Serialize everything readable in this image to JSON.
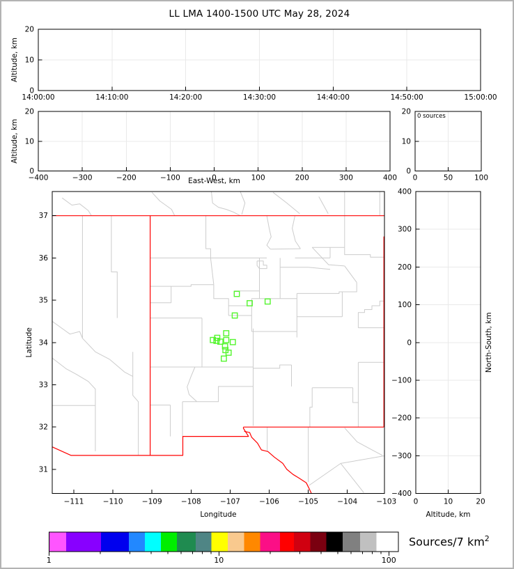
{
  "title": "LL LMA 1400-1500 UTC May 28, 2024",
  "colorbar": {
    "label": "Sources/7 km",
    "label_sup": "2",
    "scale": "log",
    "range": [
      1,
      100
    ],
    "tick_labels": [
      "1",
      "10",
      "100"
    ],
    "segment_colors": [
      "#ff55ff",
      "#8800ff",
      "#0000ee",
      "#2288ff",
      "#00ffff",
      "#00ee00",
      "#1f8b50",
      "#4f8585",
      "#ffff00",
      "#f9c98e",
      "#ff8800",
      "#fb0f86",
      "#ff0000",
      "#d00010",
      "#7a0010",
      "#000000",
      "#808080",
      "#c0c0c0",
      "#ffffff"
    ],
    "segment_widths": [
      24.7,
      50,
      40,
      23,
      23,
      23,
      27,
      22.7,
      23.3,
      23.3,
      23.4,
      28.3,
      20,
      23.3,
      23.4,
      23.3,
      25,
      23.3,
      31.7
    ]
  },
  "chart_data": [
    {
      "id": "time_height",
      "type": "scatter",
      "xlabel": "",
      "ylabel": "Altitude, km",
      "x_ticks": [
        "14:00:00",
        "14:10:00",
        "14:20:00",
        "14:30:00",
        "14:40:00",
        "14:50:00",
        "15:00:00"
      ],
      "y_range": [
        0,
        20
      ],
      "y_ticks": [
        0,
        10,
        20
      ],
      "grid": true,
      "points": []
    },
    {
      "id": "ew_height",
      "type": "scatter",
      "xlabel": "East-West, km",
      "ylabel": "Altitude, km",
      "x_range": [
        -400,
        400
      ],
      "x_ticks": [
        -400,
        -300,
        -200,
        -100,
        0,
        100,
        200,
        300,
        400
      ],
      "y_range": [
        0,
        20
      ],
      "y_ticks": [
        0,
        10,
        20
      ],
      "grid": true,
      "points": []
    },
    {
      "id": "altitude_histogram",
      "type": "bar",
      "annotation": "0 sources",
      "x_range": [
        0,
        100
      ],
      "x_ticks": [
        0,
        50,
        100
      ],
      "y_range": [
        0,
        20
      ],
      "y_ticks": [
        0,
        10,
        20
      ],
      "grid": true,
      "values": []
    },
    {
      "id": "plan_view",
      "type": "scatter",
      "xlabel": "Longitude",
      "ylabel": "Latitude",
      "x_range": [
        -111.553,
        -103.05
      ],
      "x_ticks": [
        -111,
        -110,
        -109,
        -108,
        -107,
        -106,
        -105,
        -104,
        -103
      ],
      "y_range": [
        30.43,
        37.572
      ],
      "y_ticks": [
        31,
        32,
        33,
        34,
        35,
        36,
        37
      ],
      "grid": false,
      "points": [
        [
          -106.83,
          35.15
        ],
        [
          -106.5,
          34.93
        ],
        [
          -106.04,
          34.97
        ],
        [
          -106.88,
          34.64
        ],
        [
          -107.1,
          34.22
        ],
        [
          -107.33,
          34.11
        ],
        [
          -107.44,
          34.06
        ],
        [
          -107.35,
          34.04
        ],
        [
          -107.25,
          34.02
        ],
        [
          -107.1,
          34.06
        ],
        [
          -106.93,
          34.01
        ],
        [
          -107.13,
          33.91
        ],
        [
          -107.12,
          33.82
        ],
        [
          -107.04,
          33.76
        ],
        [
          -107.16,
          33.62
        ]
      ]
    },
    {
      "id": "ns_height",
      "type": "scatter",
      "xlabel": "Altitude, km",
      "ylabel": "North-South, km",
      "x_range": [
        0,
        20
      ],
      "x_ticks": [
        0,
        10,
        20
      ],
      "y_range": [
        -400,
        400
      ],
      "y_ticks": [
        400,
        300,
        200,
        100,
        0,
        -100,
        -200,
        -300,
        -400
      ],
      "grid": true,
      "points": []
    }
  ],
  "map_layers": {
    "state_border_color": "#ff0000",
    "county_border_color": "#cccccc",
    "marker_color": "#54f52e",
    "state_lines": [
      [
        [
          -111.553,
          37.0
        ],
        [
          -103.002,
          37.0
        ]
      ],
      [
        [
          -109.047,
          37.0
        ],
        [
          -109.047,
          31.33
        ]
      ],
      [
        [
          -111.553,
          31.53
        ],
        [
          -111.07,
          31.33
        ],
        [
          -108.21,
          31.33
        ],
        [
          -108.21,
          31.78
        ],
        [
          -106.53,
          31.78
        ],
        [
          -106.66,
          31.97
        ],
        [
          -106.66,
          32.0
        ]
      ],
      [
        [
          -106.66,
          32.0
        ],
        [
          -103.065,
          32.0
        ]
      ],
      [
        [
          -103.065,
          32.0
        ],
        [
          -103.065,
          36.5
        ],
        [
          -103.002,
          36.5
        ],
        [
          -103.002,
          37.0
        ]
      ],
      [
        [
          -106.64,
          31.9
        ],
        [
          -106.5,
          31.87
        ],
        [
          -106.45,
          31.76
        ],
        [
          -106.3,
          31.62
        ],
        [
          -106.2,
          31.46
        ],
        [
          -106.03,
          31.42
        ],
        [
          -105.87,
          31.29
        ],
        [
          -105.65,
          31.14
        ],
        [
          -105.55,
          31.0
        ],
        [
          -105.39,
          30.88
        ],
        [
          -105.25,
          30.8
        ],
        [
          -105.05,
          30.68
        ],
        [
          -104.98,
          30.55
        ],
        [
          -104.92,
          30.43
        ]
      ]
    ],
    "county_lines": [
      [
        [
          -110.78,
          37
        ],
        [
          -110.78,
          34.1
        ]
      ],
      [
        [
          -110.04,
          37
        ],
        [
          -110.04,
          35.67
        ],
        [
          -109.89,
          35.67
        ],
        [
          -109.89,
          34.58
        ]
      ],
      [
        [
          -111.55,
          34.5
        ],
        [
          -111.25,
          34.3
        ],
        [
          -111.1,
          34.2
        ],
        [
          -110.85,
          34.26
        ],
        [
          -110.78,
          34.1
        ]
      ],
      [
        [
          -110.78,
          34.1
        ],
        [
          -110.45,
          33.78
        ],
        [
          -110.08,
          33.6
        ]
      ],
      [
        [
          -111.55,
          33.63
        ],
        [
          -111.2,
          33.38
        ],
        [
          -110.94,
          33.25
        ],
        [
          -110.63,
          33.08
        ],
        [
          -110.45,
          32.9
        ],
        [
          -110.45,
          32.51
        ]
      ],
      [
        [
          -111.55,
          32.51
        ],
        [
          -110.45,
          32.51
        ]
      ],
      [
        [
          -110.45,
          32.51
        ],
        [
          -110.45,
          31.43
        ]
      ],
      [
        [
          -109.49,
          33.78
        ],
        [
          -109.49,
          32.75
        ],
        [
          -109.35,
          32.6
        ],
        [
          -109.35,
          31.33
        ]
      ],
      [
        [
          -110.08,
          33.6
        ],
        [
          -109.89,
          33.45
        ],
        [
          -109.7,
          33.3
        ],
        [
          -109.49,
          33.2
        ]
      ],
      [
        [
          -111.3,
          37.42
        ],
        [
          -111.05,
          37.25
        ],
        [
          -110.85,
          37.28
        ],
        [
          -110.63,
          37.12
        ],
        [
          -110.55,
          37.0
        ]
      ],
      [
        [
          -109.0,
          37.55
        ],
        [
          -108.8,
          37.35
        ],
        [
          -108.5,
          37.15
        ],
        [
          -108.42,
          37.0
        ]
      ],
      [
        [
          -107.48,
          37.57
        ],
        [
          -107.45,
          37.3
        ],
        [
          -107.3,
          37.2
        ],
        [
          -107.1,
          37.15
        ],
        [
          -106.9,
          37.08
        ],
        [
          -106.74,
          37.0
        ]
      ],
      [
        [
          -106.74,
          37.57
        ],
        [
          -106.62,
          37.3
        ],
        [
          -106.7,
          37.03
        ]
      ],
      [
        [
          -105.9,
          37.55
        ],
        [
          -105.55,
          37.3
        ],
        [
          -105.22,
          37.05
        ]
      ],
      [
        [
          -104.73,
          37.45
        ],
        [
          -104.49,
          37.05
        ]
      ],
      [
        [
          -104.07,
          37.57
        ],
        [
          -104.07,
          37.0
        ]
      ],
      [
        [
          -103.17,
          37.57
        ],
        [
          -103.17,
          37.0
        ]
      ],
      [
        [
          -107.62,
          37
        ],
        [
          -107.62,
          36.22
        ],
        [
          -107.5,
          36.22
        ],
        [
          -107.5,
          36.0
        ]
      ],
      [
        [
          -109.05,
          36.0
        ],
        [
          -106.06,
          36.0
        ]
      ],
      [
        [
          -109.05,
          35.33
        ],
        [
          -108.0,
          35.33
        ],
        [
          -108.0,
          35.37
        ],
        [
          -107.42,
          35.37
        ]
      ],
      [
        [
          -108.51,
          35.33
        ],
        [
          -108.51,
          34.94
        ]
      ],
      [
        [
          -109.05,
          34.94
        ],
        [
          -108.51,
          34.94
        ]
      ],
      [
        [
          -109.05,
          34.58
        ],
        [
          -107.72,
          34.58
        ]
      ],
      [
        [
          -107.72,
          34.58
        ],
        [
          -107.72,
          33.42
        ]
      ],
      [
        [
          -107.9,
          33.42
        ],
        [
          -108.0,
          33.2
        ],
        [
          -108.1,
          32.95
        ],
        [
          -108.05,
          32.77
        ],
        [
          -107.85,
          32.6
        ]
      ],
      [
        [
          -107.42,
          35.37
        ],
        [
          -107.42,
          35.04
        ],
        [
          -107.04,
          35.04
        ],
        [
          -107.04,
          34.64
        ]
      ],
      [
        [
          -107.04,
          34.87
        ],
        [
          -106.45,
          34.87
        ]
      ],
      [
        [
          -107.04,
          34.64
        ],
        [
          -106.45,
          34.64
        ]
      ],
      [
        [
          -106.45,
          35.04
        ],
        [
          -106.45,
          34.26
        ]
      ],
      [
        [
          -106.25,
          36.0
        ],
        [
          -106.25,
          35.04
        ]
      ],
      [
        [
          -107.5,
          36.0
        ],
        [
          -107.42,
          35.37
        ]
      ],
      [
        [
          -106.9,
          35.22
        ],
        [
          -106.25,
          35.22
        ]
      ],
      [
        [
          -106.31,
          35.93
        ],
        [
          -106.15,
          35.93
        ],
        [
          -106.15,
          35.83
        ],
        [
          -106.06,
          35.83
        ],
        [
          -106.06,
          35.75
        ],
        [
          -106.25,
          35.75
        ],
        [
          -106.31,
          35.82
        ],
        [
          -106.31,
          35.93
        ]
      ],
      [
        [
          -105.72,
          36.0
        ],
        [
          -105.72,
          35.04
        ]
      ],
      [
        [
          -105.34,
          37.0
        ],
        [
          -105.41,
          36.7
        ],
        [
          -105.33,
          36.4
        ],
        [
          -105.2,
          36.22
        ]
      ],
      [
        [
          -106.06,
          37.0
        ],
        [
          -106.0,
          36.7
        ],
        [
          -105.95,
          36.5
        ],
        [
          -106.06,
          36.3
        ],
        [
          -105.97,
          36.21
        ]
      ],
      [
        [
          -105.97,
          36.21
        ],
        [
          -105.2,
          36.22
        ]
      ],
      [
        [
          -105.72,
          35.78
        ],
        [
          -105.0,
          35.78
        ],
        [
          -104.44,
          35.73
        ]
      ],
      [
        [
          -105.34,
          36.0
        ],
        [
          -104.44,
          36.0
        ]
      ],
      [
        [
          -104.07,
          37.0
        ],
        [
          -104.07,
          36.25
        ]
      ],
      [
        [
          -104.9,
          36.25
        ],
        [
          -104.07,
          36.25
        ]
      ],
      [
        [
          -104.44,
          36.25
        ],
        [
          -104.44,
          36.0
        ]
      ],
      [
        [
          -104.07,
          36.25
        ],
        [
          -104.07,
          36.08
        ],
        [
          -103.41,
          36.08
        ],
        [
          -103.41,
          36.02
        ],
        [
          -103.05,
          36.02
        ]
      ],
      [
        [
          -104.9,
          36.25
        ],
        [
          -104.48,
          35.84
        ],
        [
          -104.07,
          35.81
        ]
      ],
      [
        [
          -104.07,
          35.81
        ],
        [
          -103.76,
          35.42
        ]
      ],
      [
        [
          -105.29,
          35.16
        ],
        [
          -104.21,
          35.16
        ],
        [
          -104.21,
          35.2
        ],
        [
          -103.76,
          35.2
        ],
        [
          -103.76,
          35.42
        ]
      ],
      [
        [
          -105.29,
          35.16
        ],
        [
          -105.29,
          34.12
        ]
      ],
      [
        [
          -106.45,
          34.26
        ],
        [
          -105.29,
          34.26
        ]
      ],
      [
        [
          -106.41,
          34.33
        ],
        [
          -106.41,
          32.03
        ]
      ],
      [
        [
          -106.41,
          33.39
        ],
        [
          -105.73,
          33.39
        ],
        [
          -105.73,
          33.47
        ],
        [
          -105.43,
          33.47
        ]
      ],
      [
        [
          -105.29,
          34.61
        ],
        [
          -104.13,
          34.61
        ]
      ],
      [
        [
          -104.13,
          35.2
        ],
        [
          -104.13,
          34.61
        ]
      ],
      [
        [
          -103.05,
          34.98
        ],
        [
          -103.17,
          34.98
        ],
        [
          -103.17,
          34.87
        ],
        [
          -103.37,
          34.87
        ],
        [
          -103.37,
          34.78
        ],
        [
          -103.56,
          34.78
        ],
        [
          -103.56,
          34.71
        ],
        [
          -103.72,
          34.71
        ],
        [
          -103.72,
          34.35
        ]
      ],
      [
        [
          -103.72,
          34.35
        ],
        [
          -103.05,
          34.35
        ]
      ],
      [
        [
          -104.96,
          32.0
        ],
        [
          -104.96,
          32.47
        ],
        [
          -104.9,
          32.47
        ],
        [
          -104.9,
          32.93
        ]
      ],
      [
        [
          -104.9,
          32.93
        ],
        [
          -103.86,
          32.93
        ]
      ],
      [
        [
          -103.86,
          32.93
        ],
        [
          -103.86,
          32.58
        ],
        [
          -103.72,
          32.58
        ],
        [
          -103.72,
          32.0
        ]
      ],
      [
        [
          -103.72,
          33.53
        ],
        [
          -103.05,
          33.53
        ]
      ],
      [
        [
          -103.72,
          33.53
        ],
        [
          -103.72,
          32.58
        ]
      ],
      [
        [
          -107.85,
          32.6
        ],
        [
          -107.3,
          32.6
        ],
        [
          -107.3,
          32.96
        ],
        [
          -106.41,
          32.96
        ]
      ],
      [
        [
          -108.22,
          32.6
        ],
        [
          -107.85,
          32.6
        ]
      ],
      [
        [
          -108.22,
          32.6
        ],
        [
          -108.22,
          31.78
        ]
      ],
      [
        [
          -108.53,
          32.52
        ],
        [
          -108.53,
          31.78
        ]
      ],
      [
        [
          -109.05,
          32.52
        ],
        [
          -108.53,
          32.52
        ]
      ],
      [
        [
          -109.05,
          33.42
        ],
        [
          -106.41,
          33.42
        ]
      ],
      [
        [
          -105.43,
          33.47
        ],
        [
          -105.43,
          32.96
        ]
      ],
      [
        [
          -106.45,
          35.04
        ],
        [
          -105.29,
          35.04
        ]
      ],
      [
        [
          -106.05,
          32.0
        ],
        [
          -106.05,
          31.42
        ]
      ],
      [
        [
          -105.0,
          32.0
        ],
        [
          -105.0,
          30.7
        ]
      ],
      [
        [
          -104.98,
          30.62
        ],
        [
          -104.17,
          31.14
        ],
        [
          -103.05,
          31.32
        ]
      ],
      [
        [
          -104.17,
          31.14
        ],
        [
          -103.58,
          30.45
        ]
      ],
      [
        [
          -104.07,
          31.98
        ],
        [
          -103.75,
          31.65
        ],
        [
          -103.35,
          31.45
        ],
        [
          -103.1,
          31.33
        ]
      ]
    ]
  }
}
